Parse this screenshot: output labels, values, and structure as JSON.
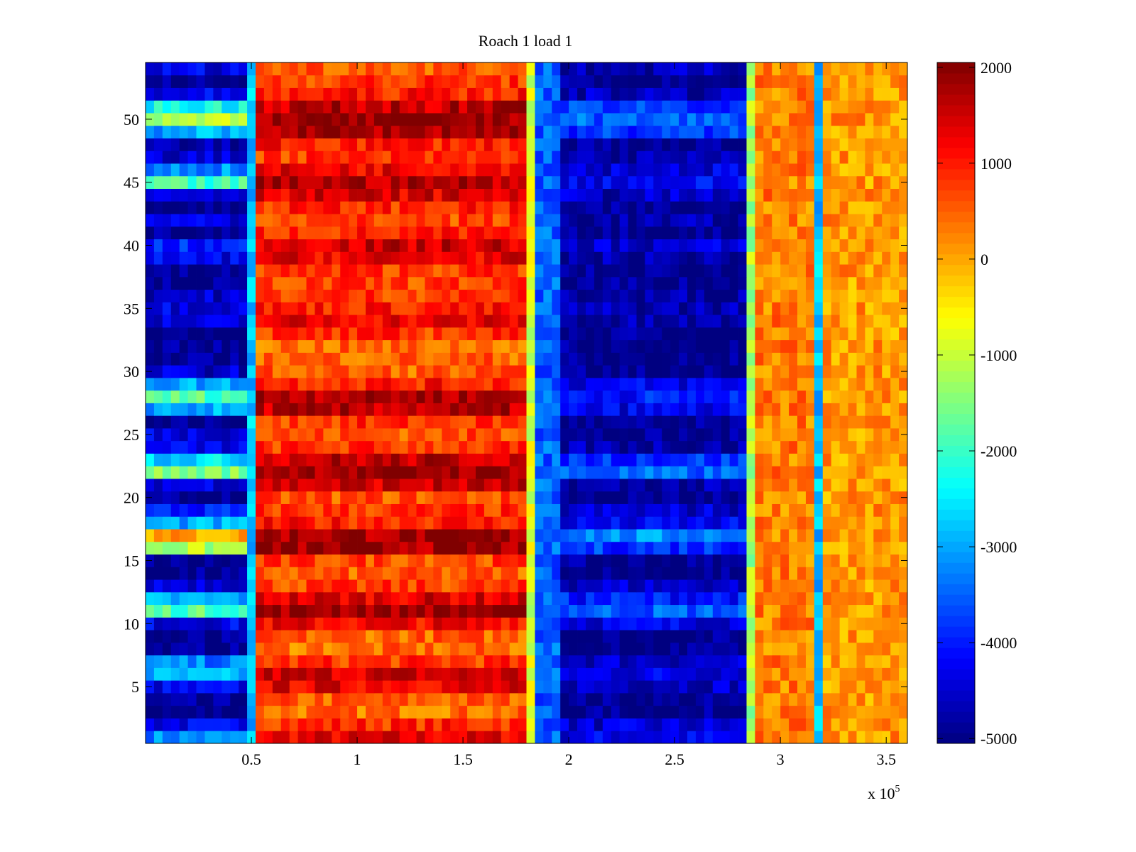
{
  "chart_data": {
    "type": "heatmap",
    "title": "Roach 1 load 1",
    "xlabel": "",
    "ylabel": "",
    "x_exponent_label": "x 10",
    "x_exponent": "5",
    "xlim": [
      0,
      360000
    ],
    "ylim": [
      0.5,
      54.5
    ],
    "x_ticks": [
      50000,
      100000,
      150000,
      200000,
      250000,
      300000,
      350000
    ],
    "x_tick_labels": [
      "0.5",
      "1",
      "1.5",
      "2",
      "2.5",
      "3",
      "3.5"
    ],
    "y_ticks": [
      5,
      10,
      15,
      20,
      25,
      30,
      35,
      40,
      45,
      50
    ],
    "y_tick_labels": [
      "5",
      "10",
      "15",
      "20",
      "25",
      "30",
      "35",
      "40",
      "45",
      "50"
    ],
    "colorbar": {
      "colormap": "jet",
      "clim": [
        -5050,
        2050
      ],
      "ticks": [
        2000,
        1000,
        0,
        -1000,
        -2000,
        -3000,
        -4000,
        -5000
      ],
      "tick_labels": [
        "2000",
        "1000",
        "0",
        "-1000",
        "-2000",
        "-3000",
        "-4000",
        "-5000"
      ]
    },
    "rows": 54,
    "segment_edges": [
      0,
      50000,
      53000,
      180000,
      183000,
      197000,
      285000,
      288000,
      315000,
      322000,
      360000
    ],
    "segment_note_values": {
      "edge1": -2800,
      "edge2": -900,
      "transition": -3500,
      "edge3": -1200,
      "band3": 300,
      "stripe": -2800,
      "band4": 100
    },
    "row_values": {
      "left": [
        -3200,
        -4300,
        -5000,
        -5000,
        -4300,
        -3000,
        -3300,
        -5000,
        -5000,
        -4300,
        -1800,
        -3000,
        -4300,
        -5000,
        -5000,
        -1200,
        0,
        -3000,
        -4000,
        -5000,
        -4300,
        -1500,
        -2600,
        -4300,
        -4300,
        -5000,
        -3000,
        -1800,
        -3000,
        -4500,
        -5000,
        -5000,
        -5000,
        -4500,
        -4300,
        -4500,
        -5000,
        -5000,
        -4300,
        -4000,
        -5000,
        -4300,
        -5000,
        -4300,
        -2000,
        -3200,
        -4500,
        -4800,
        -3000,
        -1200,
        -2300,
        -4300,
        -5000,
        -4300
      ],
      "red": [
        1300,
        900,
        400,
        500,
        1300,
        1500,
        800,
        400,
        500,
        1200,
        1900,
        1400,
        700,
        500,
        700,
        1800,
        1800,
        1000,
        800,
        600,
        1500,
        1900,
        1600,
        800,
        600,
        800,
        1600,
        1800,
        1000,
        500,
        500,
        400,
        800,
        1300,
        1000,
        800,
        700,
        800,
        1300,
        1500,
        900,
        700,
        900,
        1400,
        1700,
        1300,
        800,
        1000,
        1800,
        1900,
        1600,
        1000,
        800,
        600
      ],
      "blue": [
        -4300,
        -4500,
        -5000,
        -5000,
        -4500,
        -4300,
        -4500,
        -5000,
        -5000,
        -4300,
        -3500,
        -4000,
        -4500,
        -5000,
        -5000,
        -3800,
        -3200,
        -4300,
        -4500,
        -5000,
        -4800,
        -3500,
        -3800,
        -4700,
        -5000,
        -5000,
        -4300,
        -4000,
        -4300,
        -5000,
        -5000,
        -5000,
        -5000,
        -4800,
        -4700,
        -4800,
        -5000,
        -5000,
        -4800,
        -4500,
        -5000,
        -4800,
        -5000,
        -4600,
        -4200,
        -4400,
        -4800,
        -5000,
        -3800,
        -3500,
        -3800,
        -4600,
        -5000,
        -4700
      ]
    }
  }
}
